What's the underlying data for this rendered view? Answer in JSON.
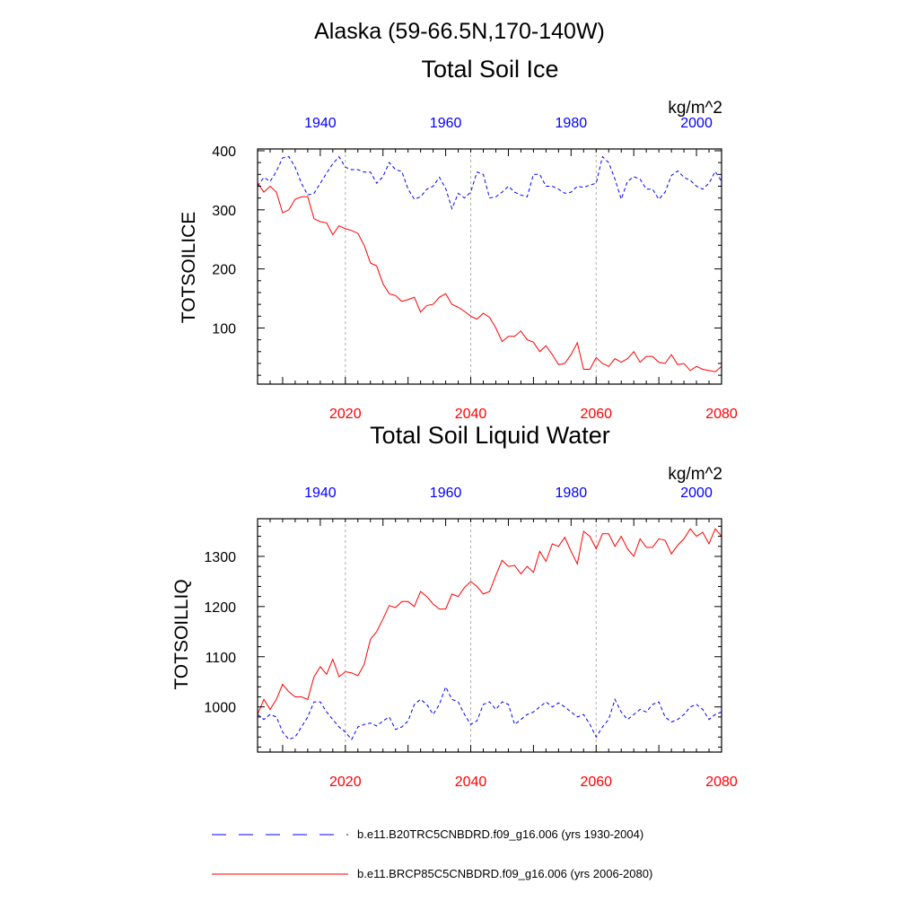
{
  "suptitle": "Alaska (59-66.5N,170-140W)",
  "units": "kg/m^2",
  "colors": {
    "historical": "#0000ff",
    "future": "#ff0000",
    "axis": "#000000",
    "grid": "#b0b0b0"
  },
  "legend": [
    {
      "label": "b.e11.B20TRC5CNBDRD.f09_g16.006 (yrs 1930-2004)",
      "color": "#0000ff",
      "style": "dashed"
    },
    {
      "label": "b.e11.BRCP85C5CNBDRD.f09_g16.006 (yrs 2006-2080)",
      "color": "#ff0000",
      "style": "solid"
    }
  ],
  "chart_data": [
    {
      "type": "line",
      "title": "Total Soil Ice",
      "ylabel": "TOTSOILICE",
      "units": "kg/m^2",
      "ylim": [
        5,
        403
      ],
      "yticks": [
        100,
        200,
        300,
        400
      ],
      "bottom_axis": {
        "range": [
          2006,
          2080
        ],
        "ticks": [
          2020,
          2040,
          2060,
          2080
        ],
        "color": "#ff0000"
      },
      "top_axis": {
        "range": [
          1930,
          2004
        ],
        "ticks": [
          1940,
          1960,
          1980,
          2000
        ],
        "color": "#0000ff"
      },
      "grid_x": [
        2020,
        2040,
        2060
      ],
      "series": [
        {
          "axis": "top",
          "style": "dashed",
          "color": "#0000ff",
          "x_start": 1930,
          "values": [
            340,
            355,
            348,
            365,
            388,
            390,
            372,
            345,
            325,
            328,
            345,
            362,
            378,
            390,
            372,
            368,
            368,
            364,
            364,
            345,
            356,
            380,
            368,
            365,
            335,
            318,
            322,
            335,
            340,
            355,
            336,
            302,
            328,
            320,
            330,
            364,
            360,
            320,
            322,
            330,
            340,
            330,
            325,
            322,
            360,
            360,
            340,
            340,
            335,
            328,
            330,
            340,
            338,
            342,
            345,
            390,
            380,
            352,
            318,
            348,
            356,
            352,
            335,
            335,
            318,
            330,
            358,
            366,
            355,
            350,
            340,
            335,
            345,
            365,
            348
          ]
        },
        {
          "axis": "bottom",
          "style": "solid",
          "color": "#ff0000",
          "x_start": 2006,
          "values": [
            345,
            330,
            340,
            330,
            295,
            300,
            318,
            322,
            322,
            285,
            280,
            278,
            258,
            273,
            268,
            265,
            260,
            240,
            210,
            205,
            175,
            158,
            155,
            145,
            148,
            152,
            127,
            138,
            140,
            152,
            158,
            140,
            135,
            128,
            120,
            115,
            125,
            118,
            100,
            77,
            86,
            86,
            95,
            80,
            76,
            60,
            70,
            55,
            38,
            40,
            55,
            75,
            30,
            30,
            50,
            40,
            35,
            48,
            42,
            48,
            60,
            42,
            52,
            52,
            42,
            40,
            55,
            38,
            40,
            28,
            35,
            30,
            28,
            26,
            35
          ]
        }
      ]
    },
    {
      "type": "line",
      "title": "Total Soil Liquid Water",
      "ylabel": "TOTSOILLIQ",
      "units": "kg/m^2",
      "ylim": [
        910,
        1375
      ],
      "yticks": [
        1000,
        1100,
        1200,
        1300
      ],
      "bottom_axis": {
        "range": [
          2006,
          2080
        ],
        "ticks": [
          2020,
          2040,
          2060,
          2080
        ],
        "color": "#ff0000"
      },
      "top_axis": {
        "range": [
          1930,
          2004
        ],
        "ticks": [
          1940,
          1960,
          1980,
          2000
        ],
        "color": "#0000ff"
      },
      "grid_x": [
        2020,
        2040,
        2060
      ],
      "series": [
        {
          "axis": "top",
          "style": "dashed",
          "color": "#0000ff",
          "x_start": 1930,
          "values": [
            985,
            975,
            985,
            980,
            950,
            935,
            940,
            960,
            980,
            1010,
            1010,
            990,
            975,
            960,
            950,
            935,
            960,
            965,
            968,
            962,
            972,
            980,
            955,
            960,
            972,
            1005,
            1015,
            1005,
            985,
            1005,
            1040,
            1015,
            1010,
            985,
            965,
            972,
            1005,
            1010,
            995,
            1010,
            1005,
            965,
            975,
            985,
            990,
            1000,
            1010,
            1000,
            1008,
            1000,
            990,
            980,
            985,
            965,
            940,
            960,
            975,
            1015,
            990,
            975,
            985,
            995,
            990,
            1005,
            1010,
            980,
            970,
            975,
            985,
            1000,
            1005,
            995,
            975,
            985,
            990
          ]
        },
        {
          "axis": "bottom",
          "style": "solid",
          "color": "#ff0000",
          "x_start": 2006,
          "values": [
            985,
            1015,
            995,
            1015,
            1045,
            1030,
            1020,
            1020,
            1015,
            1060,
            1080,
            1065,
            1095,
            1060,
            1070,
            1068,
            1062,
            1085,
            1135,
            1150,
            1175,
            1202,
            1198,
            1210,
            1210,
            1200,
            1230,
            1220,
            1205,
            1195,
            1195,
            1225,
            1220,
            1238,
            1250,
            1240,
            1225,
            1230,
            1262,
            1292,
            1280,
            1282,
            1265,
            1280,
            1268,
            1310,
            1290,
            1325,
            1320,
            1338,
            1310,
            1285,
            1350,
            1340,
            1315,
            1345,
            1345,
            1320,
            1340,
            1315,
            1300,
            1335,
            1318,
            1318,
            1335,
            1332,
            1305,
            1322,
            1335,
            1355,
            1340,
            1348,
            1325,
            1355,
            1340
          ]
        }
      ]
    }
  ]
}
